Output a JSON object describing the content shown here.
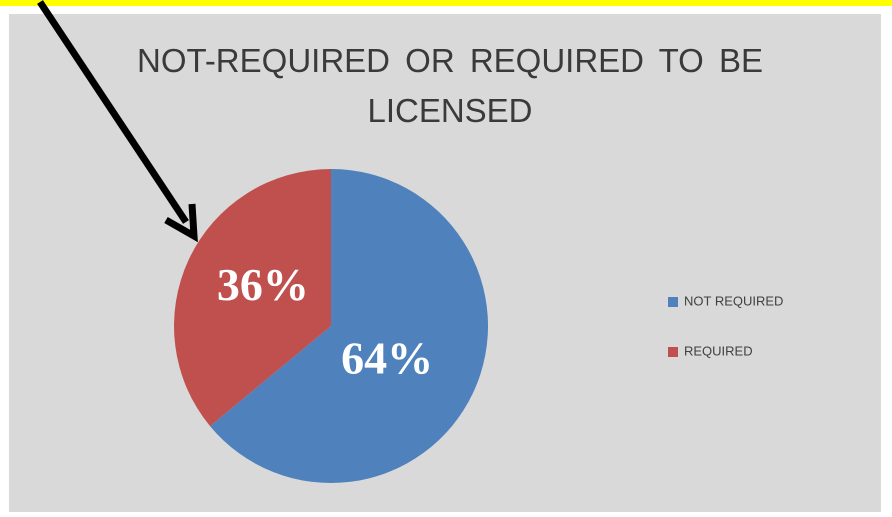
{
  "chart_data": {
    "type": "pie",
    "title": "NOT-REQUIRED OR REQUIRED TO BE LICENSED",
    "categories": [
      "NOT REQUIRED",
      "REQUIRED"
    ],
    "values": [
      64,
      36
    ],
    "value_labels": [
      "64%",
      "36%"
    ],
    "colors": [
      "#4f81bd",
      "#c0504d"
    ],
    "legend": "right"
  }
}
